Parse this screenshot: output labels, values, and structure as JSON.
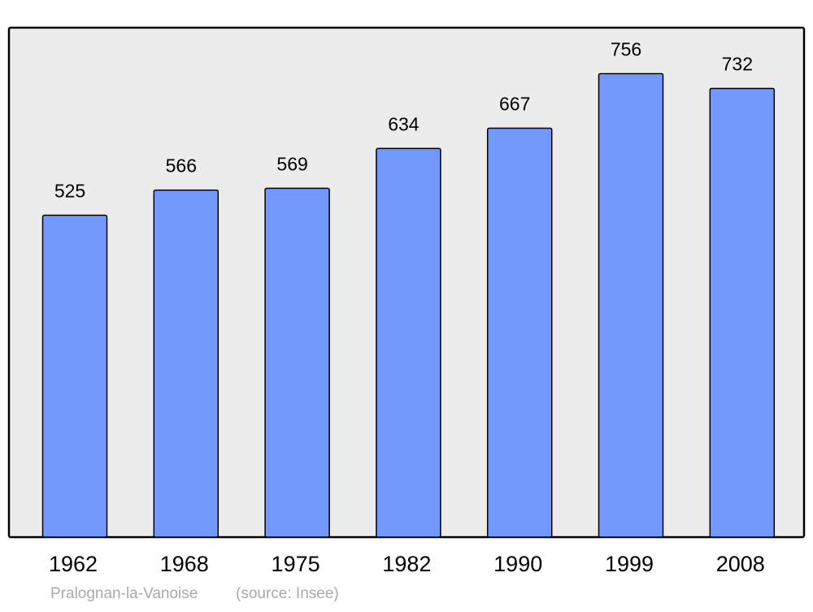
{
  "chart_data": {
    "type": "bar",
    "categories": [
      "1962",
      "1968",
      "1975",
      "1982",
      "1990",
      "1999",
      "2008"
    ],
    "values": [
      525,
      566,
      569,
      634,
      667,
      756,
      732
    ],
    "color": "#7399ff",
    "ylim": [
      0,
      831
    ],
    "place": "Pralognan-la-Vanoise",
    "source": "(source: Insee)"
  }
}
